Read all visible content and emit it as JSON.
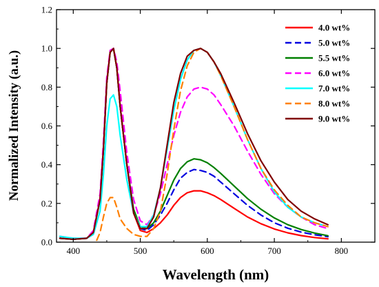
{
  "chart_data": {
    "type": "line",
    "xlabel": "Wavelength (nm)",
    "ylabel": "Normalized Intensity (a.u.)",
    "xlim": [
      375,
      850
    ],
    "ylim": [
      0,
      1.2
    ],
    "xticks": [
      400,
      500,
      600,
      700,
      800
    ],
    "xtick_labels": [
      "400",
      "500",
      "600",
      "700",
      "800"
    ],
    "yticks": [
      0.0,
      0.2,
      0.4,
      0.6,
      0.8,
      1.0,
      1.2
    ],
    "ytick_labels": [
      "0.0",
      "0.2",
      "0.4",
      "0.6",
      "0.8",
      "1.0",
      "1.2"
    ],
    "legend_position": "top-right",
    "series": [
      {
        "name": "4.0 wt%",
        "color": "#ff0000",
        "dash": "solid",
        "x": [
          380,
          400,
          420,
          430,
          440,
          445,
          450,
          455,
          460,
          465,
          470,
          480,
          490,
          500,
          510,
          520,
          530,
          540,
          550,
          560,
          570,
          580,
          590,
          600,
          610,
          620,
          640,
          660,
          680,
          700,
          720,
          740,
          760,
          780
        ],
        "y": [
          0.02,
          0.015,
          0.02,
          0.05,
          0.22,
          0.48,
          0.82,
          0.98,
          1.0,
          0.9,
          0.7,
          0.4,
          0.15,
          0.06,
          0.05,
          0.07,
          0.1,
          0.14,
          0.19,
          0.23,
          0.255,
          0.265,
          0.265,
          0.255,
          0.24,
          0.22,
          0.175,
          0.13,
          0.095,
          0.068,
          0.048,
          0.034,
          0.024,
          0.017
        ]
      },
      {
        "name": "5.0 wt%",
        "color": "#0000e0",
        "dash": "dashed",
        "x": [
          380,
          400,
          420,
          430,
          440,
          445,
          450,
          455,
          460,
          465,
          470,
          480,
          490,
          500,
          510,
          520,
          530,
          540,
          550,
          560,
          570,
          580,
          590,
          600,
          610,
          620,
          640,
          660,
          680,
          700,
          720,
          740,
          760,
          780
        ],
        "y": [
          0.02,
          0.015,
          0.02,
          0.05,
          0.22,
          0.48,
          0.82,
          0.98,
          1.0,
          0.9,
          0.7,
          0.4,
          0.16,
          0.07,
          0.06,
          0.09,
          0.14,
          0.2,
          0.27,
          0.33,
          0.36,
          0.375,
          0.37,
          0.36,
          0.34,
          0.31,
          0.25,
          0.19,
          0.14,
          0.1,
          0.072,
          0.052,
          0.038,
          0.028
        ]
      },
      {
        "name": "5.5 wt%",
        "color": "#008000",
        "dash": "solid",
        "x": [
          380,
          400,
          420,
          430,
          440,
          445,
          450,
          455,
          460,
          465,
          470,
          480,
          490,
          500,
          510,
          520,
          530,
          540,
          550,
          560,
          570,
          580,
          590,
          600,
          610,
          620,
          640,
          660,
          680,
          700,
          720,
          740,
          760,
          780
        ],
        "y": [
          0.02,
          0.015,
          0.02,
          0.05,
          0.22,
          0.48,
          0.82,
          0.98,
          1.0,
          0.9,
          0.7,
          0.4,
          0.17,
          0.08,
          0.07,
          0.1,
          0.16,
          0.24,
          0.32,
          0.38,
          0.415,
          0.43,
          0.425,
          0.41,
          0.385,
          0.355,
          0.29,
          0.225,
          0.17,
          0.125,
          0.09,
          0.065,
          0.047,
          0.033
        ]
      },
      {
        "name": "6.0 wt%",
        "color": "#ff00ff",
        "dash": "dashed",
        "x": [
          380,
          400,
          420,
          430,
          440,
          445,
          450,
          455,
          460,
          465,
          470,
          480,
          490,
          500,
          510,
          520,
          530,
          540,
          550,
          560,
          570,
          580,
          590,
          600,
          610,
          620,
          640,
          660,
          680,
          700,
          720,
          740,
          760,
          780
        ],
        "y": [
          0.03,
          0.02,
          0.02,
          0.06,
          0.25,
          0.52,
          0.85,
          0.99,
          1.0,
          0.93,
          0.78,
          0.46,
          0.22,
          0.11,
          0.09,
          0.14,
          0.25,
          0.4,
          0.55,
          0.67,
          0.75,
          0.79,
          0.8,
          0.79,
          0.76,
          0.71,
          0.6,
          0.47,
          0.35,
          0.25,
          0.18,
          0.13,
          0.09,
          0.07
        ]
      },
      {
        "name": "7.0 wt%",
        "color": "#00ffff",
        "dash": "solid",
        "x": [
          380,
          400,
          420,
          430,
          440,
          445,
          450,
          455,
          460,
          465,
          470,
          480,
          490,
          500,
          510,
          520,
          530,
          540,
          550,
          560,
          570,
          580,
          590,
          600,
          610,
          620,
          640,
          660,
          680,
          700,
          720,
          740,
          760,
          780
        ],
        "y": [
          0.03,
          0.02,
          0.02,
          0.04,
          0.16,
          0.35,
          0.6,
          0.74,
          0.76,
          0.7,
          0.55,
          0.32,
          0.15,
          0.08,
          0.08,
          0.14,
          0.28,
          0.48,
          0.68,
          0.84,
          0.94,
          0.99,
          1.0,
          0.98,
          0.93,
          0.86,
          0.7,
          0.53,
          0.38,
          0.26,
          0.18,
          0.13,
          0.1,
          0.08
        ]
      },
      {
        "name": "8.0 wt%",
        "color": "#ff8000",
        "dash": "dashed",
        "x": [
          435,
          440,
          445,
          450,
          455,
          460,
          465,
          470,
          480,
          490,
          500,
          510,
          520,
          530,
          540,
          550,
          560,
          570,
          580,
          590,
          600,
          610,
          620,
          640,
          660,
          680,
          700,
          720,
          740,
          760,
          780
        ],
        "y": [
          0.01,
          0.05,
          0.13,
          0.2,
          0.23,
          0.23,
          0.18,
          0.12,
          0.07,
          0.04,
          0.03,
          0.03,
          0.07,
          0.16,
          0.35,
          0.58,
          0.78,
          0.91,
          0.98,
          1.0,
          0.98,
          0.93,
          0.86,
          0.7,
          0.53,
          0.38,
          0.27,
          0.19,
          0.13,
          0.1,
          0.08
        ]
      },
      {
        "name": "9.0 wt%",
        "color": "#800000",
        "dash": "solid",
        "x": [
          380,
          400,
          420,
          430,
          440,
          445,
          450,
          455,
          460,
          465,
          470,
          480,
          490,
          500,
          510,
          520,
          530,
          540,
          550,
          560,
          570,
          580,
          590,
          600,
          610,
          620,
          640,
          660,
          680,
          700,
          720,
          740,
          760,
          780
        ],
        "y": [
          0.02,
          0.015,
          0.02,
          0.05,
          0.22,
          0.48,
          0.82,
          0.98,
          1.0,
          0.9,
          0.7,
          0.4,
          0.15,
          0.07,
          0.07,
          0.13,
          0.28,
          0.5,
          0.72,
          0.87,
          0.96,
          0.99,
          1.0,
          0.98,
          0.93,
          0.87,
          0.72,
          0.56,
          0.42,
          0.31,
          0.22,
          0.16,
          0.12,
          0.09
        ]
      }
    ]
  }
}
